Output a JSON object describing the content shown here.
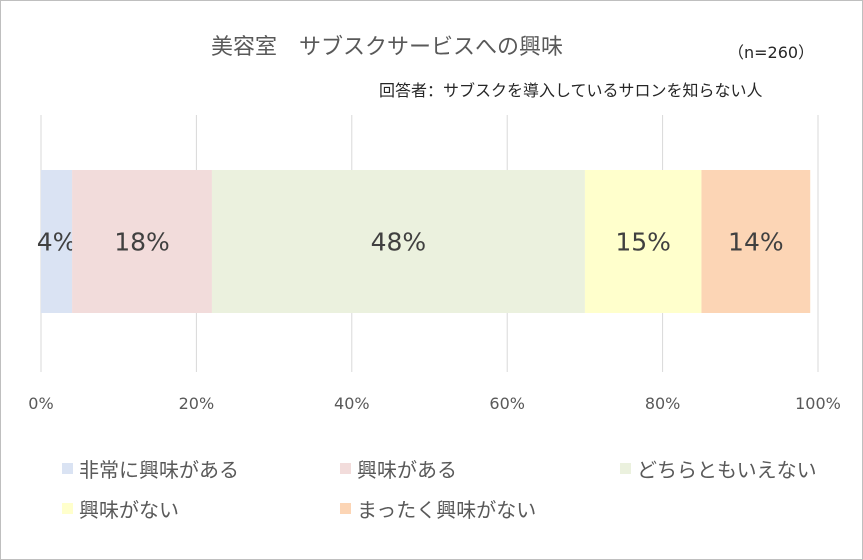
{
  "chart_data": {
    "type": "bar",
    "orientation": "horizontal-stacked-100",
    "title": "美容室　サブスクサービスへの興味",
    "sample_size": "（n=260）",
    "respondent_note": "回答者：サブスクを導入しているサロンを知らない人",
    "x_ticks": [
      "0%",
      "20%",
      "40%",
      "60%",
      "80%",
      "100%"
    ],
    "xlim": [
      0,
      100
    ],
    "grid": "vertical",
    "legend_position": "bottom",
    "series": [
      {
        "name": "非常に興味がある",
        "value": 4,
        "label": "4%",
        "color": "#dae3f3"
      },
      {
        "name": "興味がある",
        "value": 18,
        "label": "18%",
        "color": "#f2dcdb"
      },
      {
        "name": "どちらともいえない",
        "value": 48,
        "label": "48%",
        "color": "#ebf1de"
      },
      {
        "name": "興味がない",
        "value": 15,
        "label": "15%",
        "color": "#ffffcc"
      },
      {
        "name": "まったく興味がない",
        "value": 14,
        "label": "14%",
        "color": "#fcd5b5"
      }
    ]
  }
}
